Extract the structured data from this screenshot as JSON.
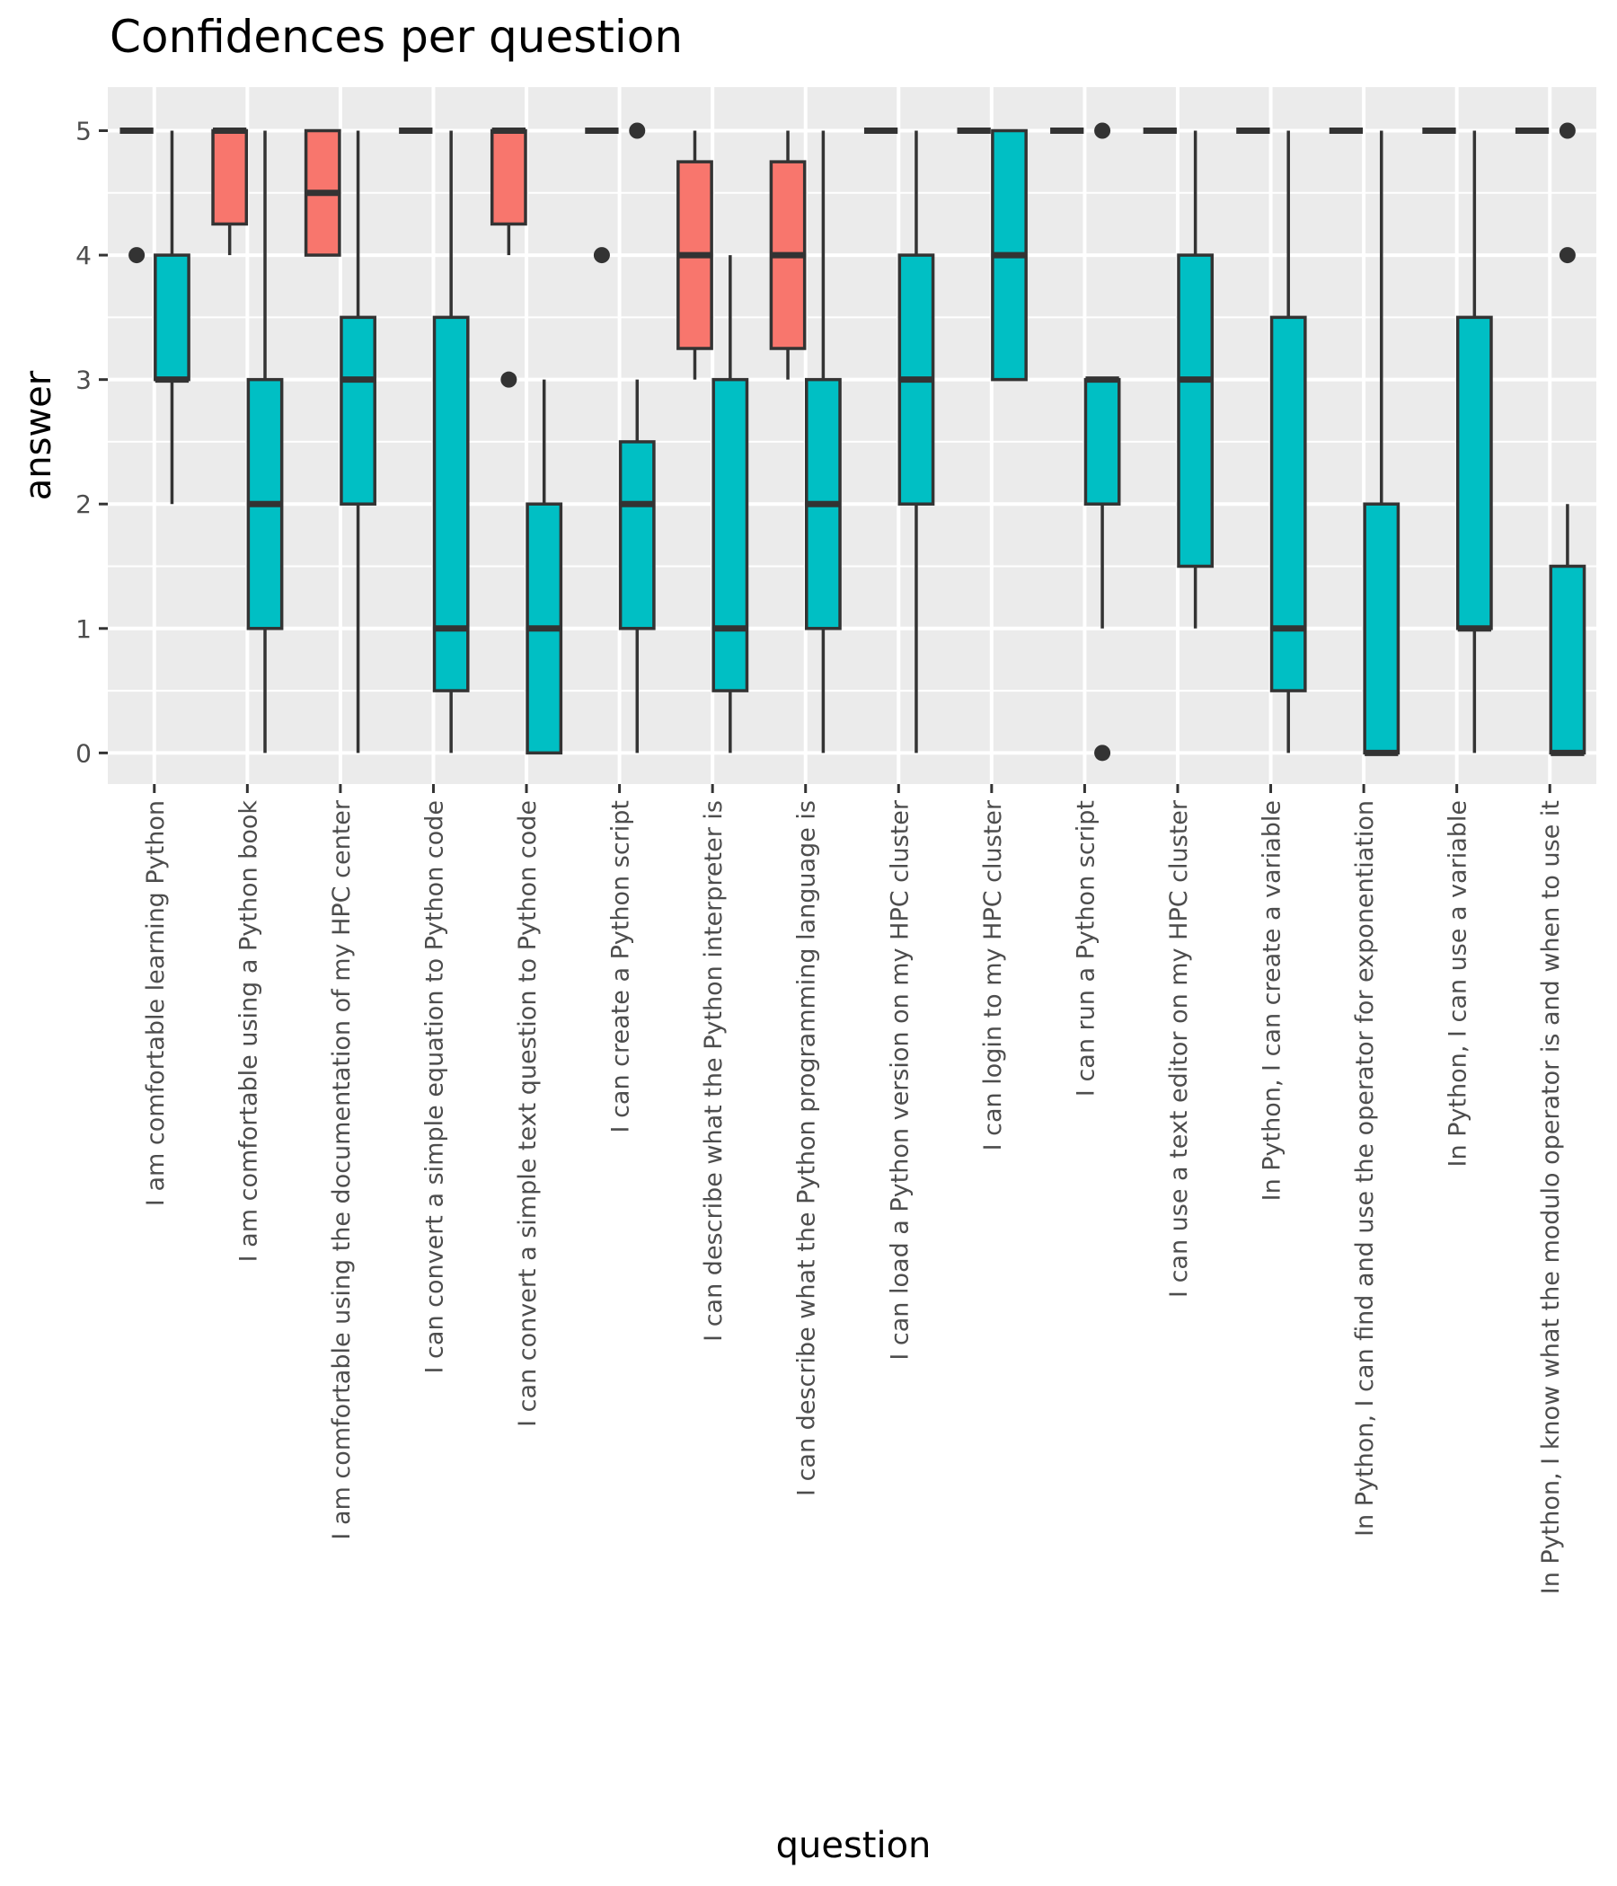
{
  "chart_data": {
    "type": "boxplot",
    "title": "Confidences per question",
    "xlabel": "question",
    "ylabel": "answer",
    "ylim": [
      -0.25,
      5.35
    ],
    "yticks": [
      0,
      1,
      2,
      3,
      4,
      5
    ],
    "ytick_labels": [
      "0",
      "1",
      "2",
      "3",
      "4",
      "5"
    ],
    "grid": true,
    "legend": "none",
    "group_colors": {
      "group_a": "#F8766D",
      "group_b": "#00BFC4"
    },
    "categories": [
      "I am comfortable learning Python",
      "I am comfortable using a Python book",
      "I am comfortable using the documentation of my HPC center",
      "I can convert a simple equation to Python code",
      "I can convert a simple text question to Python code",
      "I can create a Python script",
      "I can describe what the Python interpreter is",
      "I can describe what the Python programming language is",
      "I can load a Python version on my HPC cluster",
      "I can login to my HPC cluster",
      "I can run a Python script",
      "I can use a text editor on my HPC cluster",
      "In Python, I can create a variable",
      "In Python, I can find and use the operator for exponentiation",
      "In Python, I can use a variable",
      "In Python, I know what the modulo operator is and when to use it"
    ],
    "series": [
      {
        "name": "group_a",
        "color": "#F8766D",
        "boxes": [
          {
            "min": 5,
            "q1": 5,
            "median": 5,
            "q3": 5,
            "max": 5,
            "outliers": [
              4
            ]
          },
          {
            "min": 4,
            "q1": 4.25,
            "median": 5,
            "q3": 5,
            "max": 5,
            "outliers": []
          },
          {
            "min": 4,
            "q1": 4,
            "median": 4.5,
            "q3": 5,
            "max": 5,
            "outliers": []
          },
          {
            "min": 5,
            "q1": 5,
            "median": 5,
            "q3": 5,
            "max": 5,
            "outliers": []
          },
          {
            "min": 4,
            "q1": 4.25,
            "median": 5,
            "q3": 5,
            "max": 5,
            "outliers": [
              3
            ]
          },
          {
            "min": 5,
            "q1": 5,
            "median": 5,
            "q3": 5,
            "max": 5,
            "outliers": [
              4
            ]
          },
          {
            "min": 3,
            "q1": 3.25,
            "median": 4,
            "q3": 4.75,
            "max": 5,
            "outliers": []
          },
          {
            "min": 3,
            "q1": 3.25,
            "median": 4,
            "q3": 4.75,
            "max": 5,
            "outliers": []
          },
          {
            "min": 5,
            "q1": 5,
            "median": 5,
            "q3": 5,
            "max": 5,
            "outliers": []
          },
          {
            "min": 5,
            "q1": 5,
            "median": 5,
            "q3": 5,
            "max": 5,
            "outliers": []
          },
          {
            "min": 5,
            "q1": 5,
            "median": 5,
            "q3": 5,
            "max": 5,
            "outliers": []
          },
          {
            "min": 5,
            "q1": 5,
            "median": 5,
            "q3": 5,
            "max": 5,
            "outliers": []
          },
          {
            "min": 5,
            "q1": 5,
            "median": 5,
            "q3": 5,
            "max": 5,
            "outliers": []
          },
          {
            "min": 5,
            "q1": 5,
            "median": 5,
            "q3": 5,
            "max": 5,
            "outliers": []
          },
          {
            "min": 5,
            "q1": 5,
            "median": 5,
            "q3": 5,
            "max": 5,
            "outliers": []
          },
          {
            "min": 5,
            "q1": 5,
            "median": 5,
            "q3": 5,
            "max": 5,
            "outliers": []
          }
        ]
      },
      {
        "name": "group_b",
        "color": "#00BFC4",
        "boxes": [
          {
            "min": 2,
            "q1": 3,
            "median": 3,
            "q3": 4,
            "max": 5,
            "outliers": []
          },
          {
            "min": 0,
            "q1": 1,
            "median": 2,
            "q3": 3,
            "max": 5,
            "outliers": []
          },
          {
            "min": 0,
            "q1": 2,
            "median": 3,
            "q3": 3.5,
            "max": 5,
            "outliers": []
          },
          {
            "min": 0,
            "q1": 0.5,
            "median": 1,
            "q3": 3.5,
            "max": 5,
            "outliers": []
          },
          {
            "min": 0,
            "q1": 0,
            "median": 1,
            "q3": 2,
            "max": 3,
            "outliers": []
          },
          {
            "min": 0,
            "q1": 1,
            "median": 2,
            "q3": 2.5,
            "max": 3,
            "outliers": [
              5
            ]
          },
          {
            "min": 0,
            "q1": 0.5,
            "median": 1,
            "q3": 3,
            "max": 4,
            "outliers": []
          },
          {
            "min": 0,
            "q1": 1,
            "median": 2,
            "q3": 3,
            "max": 5,
            "outliers": []
          },
          {
            "min": 0,
            "q1": 2,
            "median": 3,
            "q3": 4,
            "max": 5,
            "outliers": []
          },
          {
            "min": 3,
            "q1": 3,
            "median": 4,
            "q3": 5,
            "max": 5,
            "outliers": []
          },
          {
            "min": 1,
            "q1": 2,
            "median": 3,
            "q3": 3,
            "max": 3,
            "outliers": [
              5,
              0
            ]
          },
          {
            "min": 1,
            "q1": 1.5,
            "median": 3,
            "q3": 4,
            "max": 5,
            "outliers": []
          },
          {
            "min": 0,
            "q1": 0.5,
            "median": 1,
            "q3": 3.5,
            "max": 5,
            "outliers": []
          },
          {
            "min": 0,
            "q1": 0,
            "median": 0,
            "q3": 2,
            "max": 5,
            "outliers": []
          },
          {
            "min": 0,
            "q1": 1,
            "median": 1,
            "q3": 3.5,
            "max": 5,
            "outliers": []
          },
          {
            "min": 0,
            "q1": 0,
            "median": 0,
            "q3": 1.5,
            "max": 2,
            "outliers": [
              5,
              4
            ]
          }
        ]
      }
    ]
  }
}
